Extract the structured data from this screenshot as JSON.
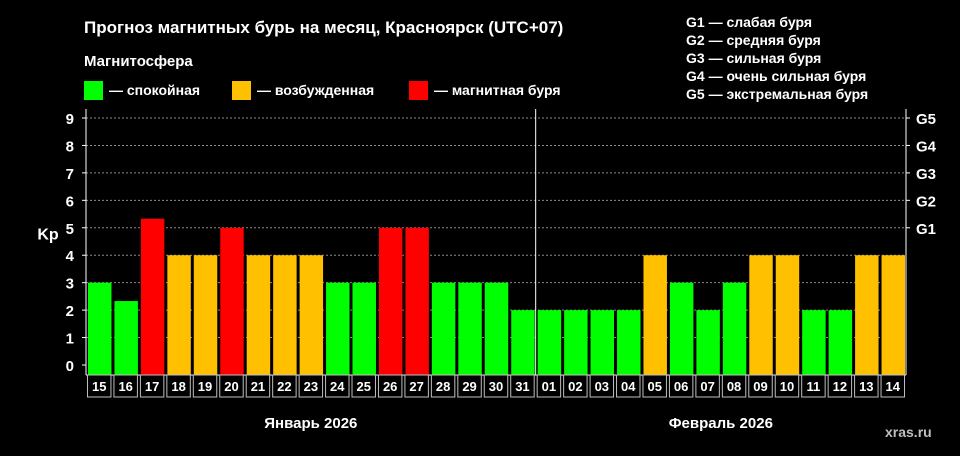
{
  "title": "Прогноз магнитных бурь на месяц, Красноярск (UTC+07)",
  "legend": {
    "title": "Магнитосфера",
    "items": [
      {
        "label": "— спокойная",
        "color": "#00ff00"
      },
      {
        "label": "— возбужденная",
        "color": "#ffc000"
      },
      {
        "label": "— магнитная буря",
        "color": "#ff0000"
      }
    ]
  },
  "g_scale": [
    "G1 — слабая буря",
    "G2 — средняя буря",
    "G3 — сильная буря",
    "G4 — очень сильная буря",
    "G5 — экстремальная буря"
  ],
  "watermark": "xras.ru",
  "chart_data": {
    "type": "bar",
    "ylabel": "Kp",
    "ylim": [
      0,
      9
    ],
    "yticks": [
      0,
      1,
      2,
      3,
      4,
      5,
      6,
      7,
      8,
      9
    ],
    "y2ticks": [
      {
        "value": 5,
        "label": "G1"
      },
      {
        "value": 6,
        "label": "G2"
      },
      {
        "value": 7,
        "label": "G3"
      },
      {
        "value": 8,
        "label": "G4"
      },
      {
        "value": 9,
        "label": "G5"
      }
    ],
    "grid": true,
    "categories": [
      "15",
      "16",
      "17",
      "18",
      "19",
      "20",
      "21",
      "22",
      "23",
      "24",
      "25",
      "26",
      "27",
      "28",
      "29",
      "30",
      "31",
      "01",
      "02",
      "03",
      "04",
      "05",
      "06",
      "07",
      "08",
      "09",
      "10",
      "11",
      "12",
      "13",
      "14"
    ],
    "values": [
      3,
      2.33,
      5.33,
      4,
      4,
      5,
      4,
      4,
      4,
      3,
      3,
      5,
      5,
      3,
      3,
      3,
      2,
      2,
      2,
      2,
      2,
      4,
      3,
      2,
      3,
      4,
      4,
      2,
      2,
      4,
      4
    ],
    "colors": [
      "#00ff00",
      "#00ff00",
      "#ff0000",
      "#ffc000",
      "#ffc000",
      "#ff0000",
      "#ffc000",
      "#ffc000",
      "#ffc000",
      "#00ff00",
      "#00ff00",
      "#ff0000",
      "#ff0000",
      "#00ff00",
      "#00ff00",
      "#00ff00",
      "#00ff00",
      "#00ff00",
      "#00ff00",
      "#00ff00",
      "#00ff00",
      "#ffc000",
      "#00ff00",
      "#00ff00",
      "#00ff00",
      "#ffc000",
      "#ffc000",
      "#00ff00",
      "#00ff00",
      "#ffc000",
      "#ffc000"
    ],
    "month_groups": [
      {
        "label": "Январь 2026",
        "count": 17
      },
      {
        "label": "Февраль 2026",
        "count": 14
      }
    ]
  }
}
